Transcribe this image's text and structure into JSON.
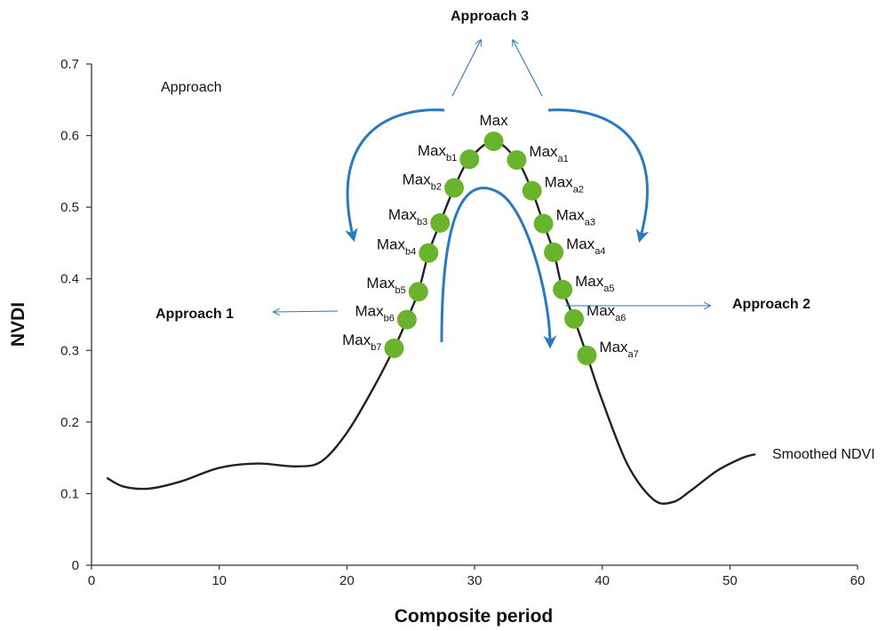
{
  "chart_data": {
    "type": "line",
    "title": "",
    "xlabel": "Composite period",
    "ylabel": "NVDI",
    "xlim": [
      0,
      60
    ],
    "ylim": [
      0,
      0.7
    ],
    "x_ticks": [
      "0",
      "10",
      "20",
      "30",
      "40",
      "50",
      "60"
    ],
    "y_ticks": [
      "0",
      "0.1",
      "0.2",
      "0.3",
      "0.4",
      "0.5",
      "0.6",
      "0.7"
    ],
    "grid": false,
    "series": [
      {
        "name": "Smoothed NDVI",
        "color": "#222222",
        "x": [
          1.2,
          2.5,
          4.5,
          7,
          10,
          13,
          16,
          18,
          20,
          22,
          23.7,
          24.7,
          25.6,
          26.4,
          27.3,
          28.4,
          29.6,
          31.5,
          33.3,
          34.5,
          35.4,
          36.2,
          36.9,
          37.8,
          38.8,
          40,
          42,
          44,
          45.5,
          47,
          49,
          51,
          52
        ],
        "values": [
          0.122,
          0.11,
          0.107,
          0.117,
          0.136,
          0.142,
          0.138,
          0.145,
          0.185,
          0.245,
          0.303,
          0.343,
          0.382,
          0.436,
          0.478,
          0.527,
          0.567,
          0.592,
          0.566,
          0.523,
          0.477,
          0.437,
          0.385,
          0.344,
          0.293,
          0.23,
          0.14,
          0.092,
          0.088,
          0.105,
          0.132,
          0.15,
          0.155
        ]
      }
    ],
    "points": [
      {
        "base": "Max",
        "sub": "b7",
        "x": 23.7,
        "y": 0.303,
        "side": "left"
      },
      {
        "base": "Max",
        "sub": "b6",
        "x": 24.7,
        "y": 0.343,
        "side": "left"
      },
      {
        "base": "Max",
        "sub": "b5",
        "x": 25.6,
        "y": 0.382,
        "side": "left"
      },
      {
        "base": "Max",
        "sub": "b4",
        "x": 26.4,
        "y": 0.436,
        "side": "left"
      },
      {
        "base": "Max",
        "sub": "b3",
        "x": 27.3,
        "y": 0.478,
        "side": "left"
      },
      {
        "base": "Max",
        "sub": "b2",
        "x": 28.4,
        "y": 0.527,
        "side": "left"
      },
      {
        "base": "Max",
        "sub": "b1",
        "x": 29.6,
        "y": 0.567,
        "side": "left"
      },
      {
        "base": "Max",
        "sub": "",
        "x": 31.5,
        "y": 0.592,
        "side": "top"
      },
      {
        "base": "Max",
        "sub": "a1",
        "x": 33.3,
        "y": 0.566,
        "side": "right"
      },
      {
        "base": "Max",
        "sub": "a2",
        "x": 34.5,
        "y": 0.523,
        "side": "right"
      },
      {
        "base": "Max",
        "sub": "a3",
        "x": 35.4,
        "y": 0.477,
        "side": "right"
      },
      {
        "base": "Max",
        "sub": "a4",
        "x": 36.2,
        "y": 0.437,
        "side": "right"
      },
      {
        "base": "Max",
        "sub": "a5",
        "x": 36.9,
        "y": 0.385,
        "side": "right"
      },
      {
        "base": "Max",
        "sub": "a6",
        "x": 37.8,
        "y": 0.344,
        "side": "right"
      },
      {
        "base": "Max",
        "sub": "a7",
        "x": 38.8,
        "y": 0.293,
        "side": "right"
      }
    ],
    "annotations": {
      "approach": "Approach",
      "approach1": "Approach 1",
      "approach2": "Approach 2",
      "approach3": "Approach 3",
      "series_label": "Smoothed NDVI"
    },
    "colors": {
      "point": "#6ab42d",
      "arrow": "#2a79c0",
      "line": "#222222"
    }
  }
}
